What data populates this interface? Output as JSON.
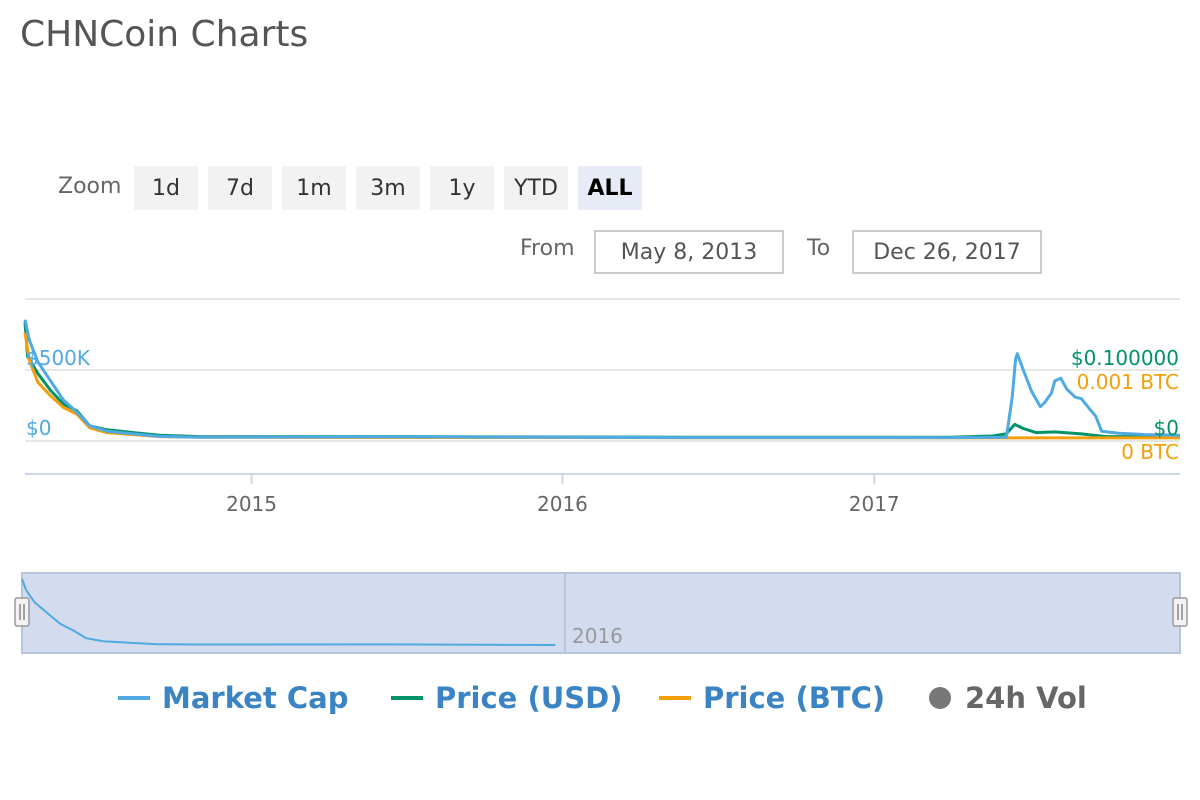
{
  "page": {
    "title": "CHNCoin Charts"
  },
  "zoom": {
    "label": "Zoom",
    "buttons": [
      {
        "label": "1d",
        "active": false
      },
      {
        "label": "7d",
        "active": false
      },
      {
        "label": "1m",
        "active": false
      },
      {
        "label": "3m",
        "active": false
      },
      {
        "label": "1y",
        "active": false
      },
      {
        "label": "YTD",
        "active": false
      },
      {
        "label": "ALL",
        "active": true
      }
    ]
  },
  "range": {
    "from_label": "From",
    "from_value": "May 8, 2013",
    "to_label": "To",
    "to_value": "Dec 26, 2017"
  },
  "legend": {
    "market_cap": "Market Cap",
    "price_usd": "Price (USD)",
    "price_btc": "Price (BTC)",
    "volume": "24h Vol"
  },
  "colors": {
    "market_cap": "#4fa9e3",
    "price_usd": "#00936a",
    "price_btc": "#f59e0b",
    "volume": "#777777",
    "legend_text": "#3b84c4"
  },
  "chart_data": {
    "type": "line",
    "title": "",
    "x_domain": [
      "2014-04-10",
      "2017-12-26"
    ],
    "x_ticks": [
      "2015",
      "2016",
      "2017"
    ],
    "y_axes": {
      "market_cap": {
        "ticks": [
          "$0",
          "$500K"
        ],
        "range": [
          0,
          500000
        ]
      },
      "price_usd": {
        "ticks": [
          "$0",
          "$0.100000"
        ],
        "range": [
          0,
          0.1
        ]
      },
      "price_btc": {
        "ticks": [
          "0 BTC",
          "0.001 BTC"
        ],
        "range": [
          0,
          0.001
        ]
      }
    },
    "grid": true,
    "legend_position": "bottom",
    "series": [
      {
        "name": "Market Cap",
        "axis": "market_cap",
        "points": [
          [
            "2014-04-10",
            870000
          ],
          [
            "2014-04-15",
            720000
          ],
          [
            "2014-04-25",
            560000
          ],
          [
            "2014-05-10",
            420000
          ],
          [
            "2014-05-25",
            280000
          ],
          [
            "2014-06-10",
            190000
          ],
          [
            "2014-06-25",
            90000
          ],
          [
            "2014-07-15",
            50000
          ],
          [
            "2014-08-15",
            30000
          ],
          [
            "2014-09-15",
            12000
          ],
          [
            "2014-11-01",
            6000
          ],
          [
            "2015-06-15",
            8000
          ],
          [
            "2016-06-01",
            3000
          ],
          [
            "2017-04-01",
            3000
          ],
          [
            "2017-06-05",
            5000
          ],
          [
            "2017-06-07",
            80000
          ],
          [
            "2017-06-12",
            300000
          ],
          [
            "2017-06-16",
            580000
          ],
          [
            "2017-06-18",
            620000
          ],
          [
            "2017-06-25",
            500000
          ],
          [
            "2017-07-05",
            340000
          ],
          [
            "2017-07-15",
            230000
          ],
          [
            "2017-07-20",
            260000
          ],
          [
            "2017-07-28",
            330000
          ],
          [
            "2017-08-01",
            420000
          ],
          [
            "2017-08-08",
            440000
          ],
          [
            "2017-08-15",
            360000
          ],
          [
            "2017-08-25",
            300000
          ],
          [
            "2017-09-01",
            290000
          ],
          [
            "2017-09-10",
            220000
          ],
          [
            "2017-09-18",
            160000
          ],
          [
            "2017-09-25",
            50000
          ],
          [
            "2017-10-15",
            35000
          ],
          [
            "2017-11-15",
            25000
          ],
          [
            "2017-12-26",
            20000
          ]
        ]
      },
      {
        "name": "Price (USD)",
        "axis": "price_usd",
        "points": [
          [
            "2014-04-10",
            0.17
          ],
          [
            "2014-04-13",
            0.12
          ],
          [
            "2014-04-25",
            0.095
          ],
          [
            "2014-05-10",
            0.07
          ],
          [
            "2014-05-25",
            0.05
          ],
          [
            "2014-06-10",
            0.04
          ],
          [
            "2014-06-25",
            0.018
          ],
          [
            "2014-07-15",
            0.012
          ],
          [
            "2014-08-15",
            0.008
          ],
          [
            "2014-09-15",
            0.004
          ],
          [
            "2014-11-01",
            0.002
          ],
          [
            "2015-06-15",
            0.002
          ],
          [
            "2016-06-01",
            0.001
          ],
          [
            "2017-04-01",
            0.001
          ],
          [
            "2017-05-20",
            0.003
          ],
          [
            "2017-06-05",
            0.006
          ],
          [
            "2017-06-15",
            0.02
          ],
          [
            "2017-06-25",
            0.014
          ],
          [
            "2017-07-10",
            0.008
          ],
          [
            "2017-08-01",
            0.009
          ],
          [
            "2017-09-01",
            0.006
          ],
          [
            "2017-10-01",
            0.002
          ],
          [
            "2017-12-26",
            0.002
          ]
        ]
      },
      {
        "name": "Price (BTC)",
        "axis": "price_btc",
        "points": [
          [
            "2014-04-10",
            0.00155
          ],
          [
            "2014-04-15",
            0.00115
          ],
          [
            "2014-04-25",
            0.00082
          ],
          [
            "2014-05-10",
            0.00062
          ],
          [
            "2014-05-25",
            0.00045
          ],
          [
            "2014-06-10",
            0.00035
          ],
          [
            "2014-06-25",
            0.00015
          ],
          [
            "2014-07-15",
            8e-05
          ],
          [
            "2014-08-15",
            5e-05
          ],
          [
            "2014-09-15",
            2e-05
          ],
          [
            "2014-11-01",
            1e-05
          ],
          [
            "2016-06-01",
            5e-06
          ],
          [
            "2017-12-26",
            2e-06
          ]
        ]
      }
    ],
    "navigator": {
      "x_label": "2016",
      "selected_range": [
        "2014-04-10",
        "2017-12-26"
      ],
      "series": "Market Cap"
    }
  }
}
